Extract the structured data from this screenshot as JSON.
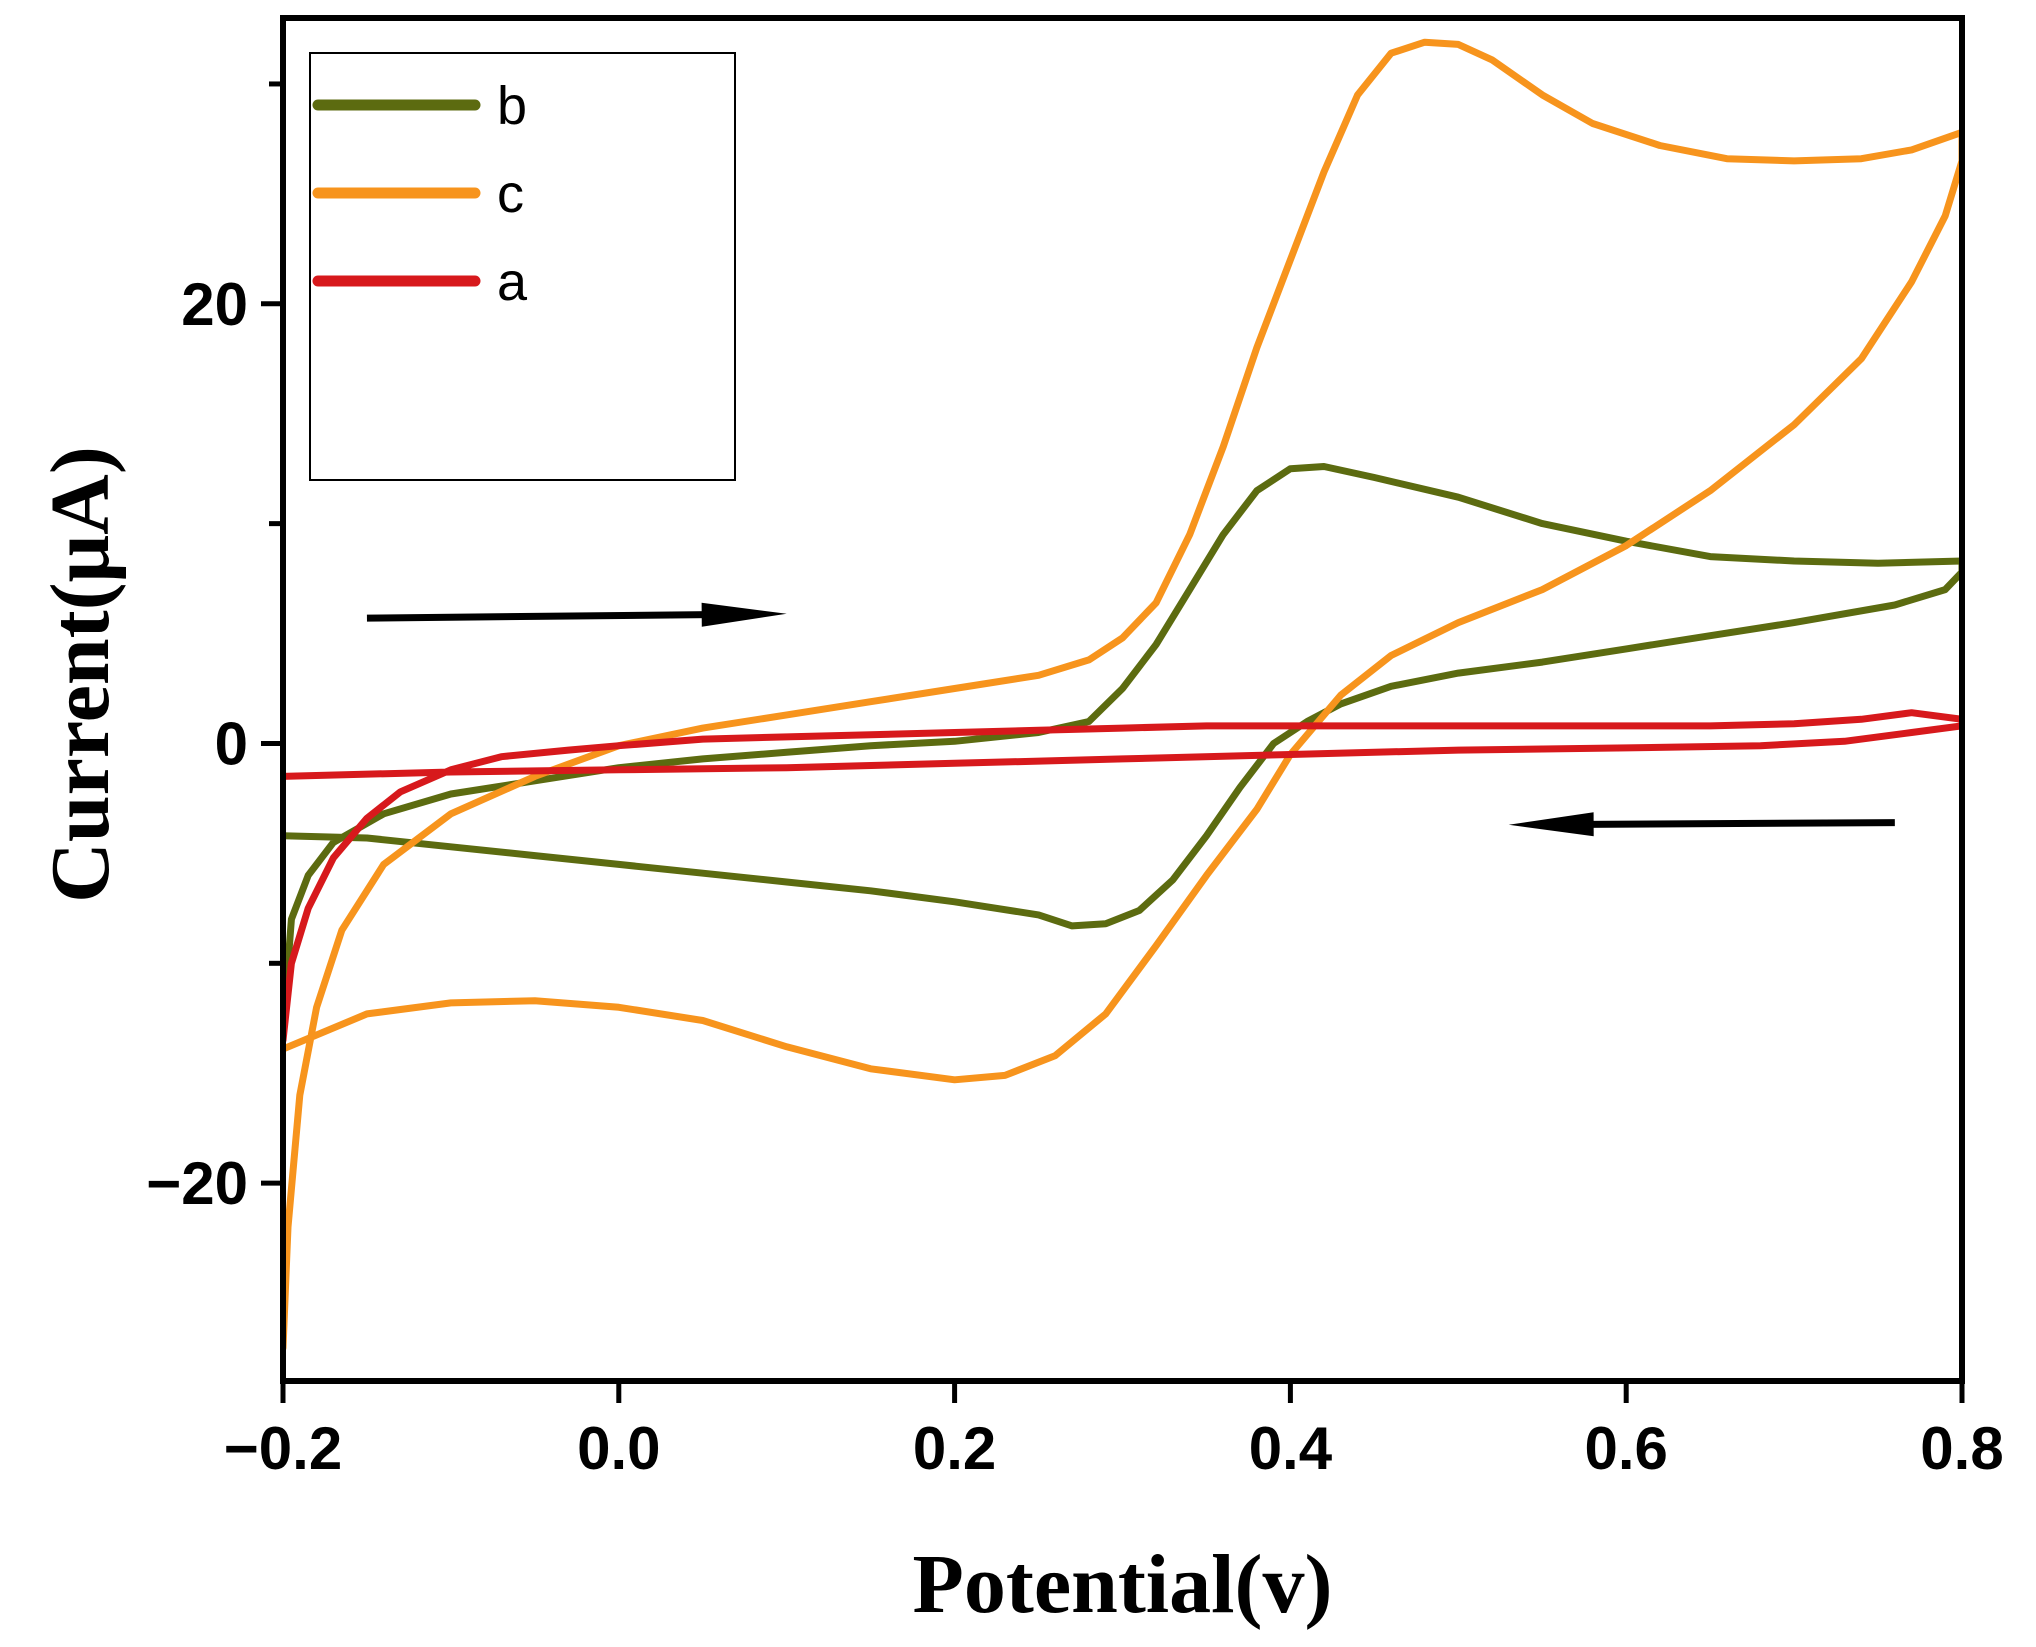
{
  "chart_data": {
    "type": "line",
    "title": "",
    "xlabel": "Potential(v)",
    "ylabel": "Current(μA)",
    "xlim": [
      -0.2,
      0.8
    ],
    "ylim": [
      -29,
      33
    ],
    "x_ticks": [
      {
        "value": -0.2,
        "label": "−0.2"
      },
      {
        "value": 0.0,
        "label": "0.0"
      },
      {
        "value": 0.2,
        "label": "0.2"
      },
      {
        "value": 0.4,
        "label": "0.4"
      },
      {
        "value": 0.6,
        "label": "0.6"
      },
      {
        "value": 0.8,
        "label": "0.8"
      }
    ],
    "y_ticks": [
      {
        "value": -20,
        "label": "−20"
      },
      {
        "value": 0,
        "label": "0"
      },
      {
        "value": 20,
        "label": "20"
      }
    ],
    "y_minor_ticks": [
      -10,
      10,
      30
    ],
    "grid": false,
    "legend_position": "top-left",
    "annotations": [
      {
        "type": "arrow",
        "direction": "right",
        "meaning": "forward scan",
        "from": [
          -0.15,
          5.7
        ],
        "to": [
          0.1,
          5.9
        ]
      },
      {
        "type": "arrow",
        "direction": "left",
        "meaning": "reverse scan",
        "from": [
          0.76,
          -3.6
        ],
        "to": [
          0.53,
          -3.7
        ]
      }
    ],
    "series": [
      {
        "name": "b",
        "color": "#5c6b10",
        "points": [
          [
            -0.2,
            -13
          ],
          [
            -0.195,
            -8
          ],
          [
            -0.185,
            -6
          ],
          [
            -0.17,
            -4.5
          ],
          [
            -0.14,
            -3.2
          ],
          [
            -0.1,
            -2.3
          ],
          [
            -0.05,
            -1.7
          ],
          [
            0.0,
            -1.1
          ],
          [
            0.05,
            -0.7
          ],
          [
            0.1,
            -0.4
          ],
          [
            0.15,
            -0.1
          ],
          [
            0.2,
            0.1
          ],
          [
            0.25,
            0.5
          ],
          [
            0.28,
            1.0
          ],
          [
            0.3,
            2.5
          ],
          [
            0.32,
            4.5
          ],
          [
            0.34,
            7.0
          ],
          [
            0.36,
            9.5
          ],
          [
            0.38,
            11.5
          ],
          [
            0.4,
            12.5
          ],
          [
            0.42,
            12.6
          ],
          [
            0.45,
            12.1
          ],
          [
            0.5,
            11.2
          ],
          [
            0.55,
            10.0
          ],
          [
            0.6,
            9.2
          ],
          [
            0.65,
            8.5
          ],
          [
            0.7,
            8.3
          ],
          [
            0.75,
            8.2
          ],
          [
            0.8,
            8.3
          ],
          [
            0.8,
            7.8
          ],
          [
            0.79,
            7.0
          ],
          [
            0.76,
            6.3
          ],
          [
            0.7,
            5.5
          ],
          [
            0.65,
            4.9
          ],
          [
            0.6,
            4.3
          ],
          [
            0.55,
            3.7
          ],
          [
            0.5,
            3.2
          ],
          [
            0.46,
            2.6
          ],
          [
            0.43,
            1.8
          ],
          [
            0.41,
            1.0
          ],
          [
            0.39,
            0.0
          ],
          [
            0.37,
            -2.0
          ],
          [
            0.35,
            -4.2
          ],
          [
            0.33,
            -6.2
          ],
          [
            0.31,
            -7.6
          ],
          [
            0.29,
            -8.2
          ],
          [
            0.27,
            -8.3
          ],
          [
            0.25,
            -7.8
          ],
          [
            0.2,
            -7.2
          ],
          [
            0.15,
            -6.7
          ],
          [
            0.1,
            -6.3
          ],
          [
            0.05,
            -5.9
          ],
          [
            0.0,
            -5.5
          ],
          [
            -0.05,
            -5.1
          ],
          [
            -0.1,
            -4.7
          ],
          [
            -0.15,
            -4.3
          ],
          [
            -0.2,
            -4.2
          ]
        ]
      },
      {
        "name": "c",
        "color": "#f7941d",
        "points": [
          [
            -0.2,
            -27.5
          ],
          [
            -0.197,
            -22
          ],
          [
            -0.19,
            -16
          ],
          [
            -0.18,
            -12
          ],
          [
            -0.165,
            -8.5
          ],
          [
            -0.14,
            -5.5
          ],
          [
            -0.1,
            -3.2
          ],
          [
            -0.05,
            -1.5
          ],
          [
            0.0,
            -0.1
          ],
          [
            0.05,
            0.7
          ],
          [
            0.1,
            1.3
          ],
          [
            0.15,
            1.9
          ],
          [
            0.2,
            2.5
          ],
          [
            0.25,
            3.1
          ],
          [
            0.28,
            3.8
          ],
          [
            0.3,
            4.8
          ],
          [
            0.32,
            6.4
          ],
          [
            0.34,
            9.5
          ],
          [
            0.36,
            13.5
          ],
          [
            0.38,
            18.0
          ],
          [
            0.4,
            22.0
          ],
          [
            0.42,
            26.0
          ],
          [
            0.44,
            29.5
          ],
          [
            0.46,
            31.4
          ],
          [
            0.48,
            31.9
          ],
          [
            0.5,
            31.8
          ],
          [
            0.52,
            31.1
          ],
          [
            0.55,
            29.5
          ],
          [
            0.58,
            28.2
          ],
          [
            0.62,
            27.2
          ],
          [
            0.66,
            26.6
          ],
          [
            0.7,
            26.5
          ],
          [
            0.74,
            26.6
          ],
          [
            0.77,
            27.0
          ],
          [
            0.8,
            27.8
          ],
          [
            0.8,
            26.5
          ],
          [
            0.79,
            24.0
          ],
          [
            0.77,
            21.0
          ],
          [
            0.74,
            17.5
          ],
          [
            0.7,
            14.5
          ],
          [
            0.65,
            11.5
          ],
          [
            0.6,
            9.0
          ],
          [
            0.55,
            7.0
          ],
          [
            0.5,
            5.5
          ],
          [
            0.46,
            4.0
          ],
          [
            0.43,
            2.2
          ],
          [
            0.4,
            -0.5
          ],
          [
            0.38,
            -3.0
          ],
          [
            0.35,
            -6.0
          ],
          [
            0.32,
            -9.2
          ],
          [
            0.29,
            -12.3
          ],
          [
            0.26,
            -14.2
          ],
          [
            0.23,
            -15.1
          ],
          [
            0.2,
            -15.3
          ],
          [
            0.15,
            -14.8
          ],
          [
            0.1,
            -13.8
          ],
          [
            0.05,
            -12.6
          ],
          [
            0.0,
            -12.0
          ],
          [
            -0.05,
            -11.7
          ],
          [
            -0.1,
            -11.8
          ],
          [
            -0.15,
            -12.3
          ],
          [
            -0.2,
            -13.9
          ]
        ]
      },
      {
        "name": "a",
        "color": "#d7191c",
        "points": [
          [
            -0.2,
            -13.5
          ],
          [
            -0.195,
            -10
          ],
          [
            -0.185,
            -7.5
          ],
          [
            -0.17,
            -5.2
          ],
          [
            -0.15,
            -3.4
          ],
          [
            -0.13,
            -2.2
          ],
          [
            -0.1,
            -1.2
          ],
          [
            -0.07,
            -0.6
          ],
          [
            -0.03,
            -0.3
          ],
          [
            0.0,
            -0.1
          ],
          [
            0.05,
            0.2
          ],
          [
            0.1,
            0.3
          ],
          [
            0.15,
            0.4
          ],
          [
            0.2,
            0.5
          ],
          [
            0.25,
            0.6
          ],
          [
            0.3,
            0.7
          ],
          [
            0.35,
            0.8
          ],
          [
            0.4,
            0.8
          ],
          [
            0.45,
            0.8
          ],
          [
            0.5,
            0.8
          ],
          [
            0.55,
            0.8
          ],
          [
            0.6,
            0.8
          ],
          [
            0.65,
            0.8
          ],
          [
            0.7,
            0.9
          ],
          [
            0.74,
            1.1
          ],
          [
            0.77,
            1.4
          ],
          [
            0.8,
            1.1
          ],
          [
            0.8,
            0.8
          ],
          [
            0.77,
            0.5
          ],
          [
            0.73,
            0.1
          ],
          [
            0.68,
            -0.1
          ],
          [
            0.6,
            -0.2
          ],
          [
            0.5,
            -0.3
          ],
          [
            0.4,
            -0.5
          ],
          [
            0.3,
            -0.7
          ],
          [
            0.2,
            -0.9
          ],
          [
            0.1,
            -1.1
          ],
          [
            0.0,
            -1.2
          ],
          [
            -0.1,
            -1.3
          ],
          [
            -0.2,
            -1.5
          ]
        ]
      }
    ]
  }
}
